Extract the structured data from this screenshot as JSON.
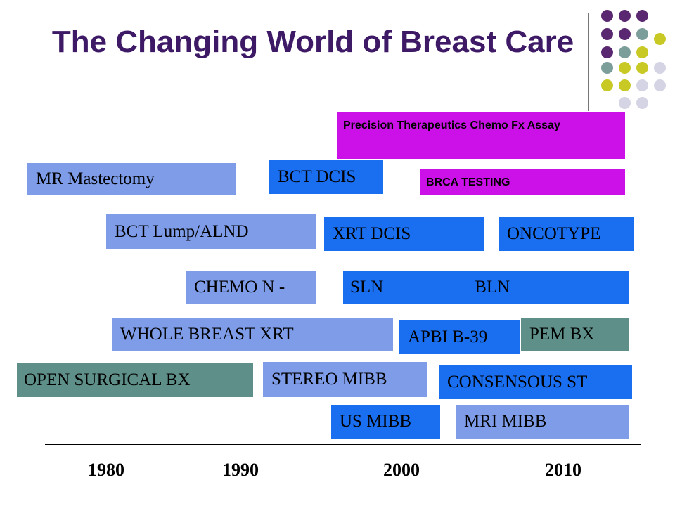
{
  "title": "The Changing World of Breast Care",
  "colors": {
    "title": "#3d1966",
    "light_blue": "#7e9ce8",
    "bright_blue": "#1a6ef0",
    "teal": "#5e9089",
    "magenta": "#cc11e8",
    "dot_purple": "#5a2870",
    "dot_teal": "#7c9e9a",
    "dot_yellow": "#c9c926",
    "dot_lavender": "#d4d4e4"
  },
  "decoration": {
    "icon": "dot-grid-icon"
  },
  "boxes": {
    "precision": "Precision Therapeutics Chemo Fx Assay",
    "mr_mastectomy": "MR Mastectomy",
    "bct_dcis": "BCT DCIS",
    "brca": "BRCA TESTING",
    "bct_lump": "BCT Lump/ALND",
    "xrt_dcis": "XRT DCIS",
    "oncotype": "ONCOTYPE",
    "chemo": "CHEMO N -",
    "sln": "SLN",
    "bln": "BLN",
    "whole_breast": "WHOLE BREAST XRT",
    "apbi": "APBI  B-39",
    "pem": "PEM BX",
    "open_surgical": "OPEN SURGICAL BX",
    "stereo": "STEREO MIBB",
    "consensous": "CONSENSOUS ST",
    "us_mibb": "US MIBB",
    "mri_mibb": "MRI MIBB"
  },
  "timeline": {
    "years": [
      "1980",
      "1990",
      "2000",
      "2010"
    ]
  }
}
